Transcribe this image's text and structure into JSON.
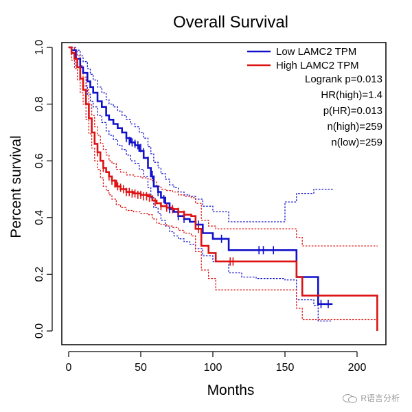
{
  "chart_data": {
    "type": "line",
    "title": "Overall Survival",
    "xlabel": "Months",
    "ylabel": "Percent survival",
    "xlim": [
      0,
      215
    ],
    "ylim": [
      0,
      1.0
    ],
    "x_ticks": [
      0,
      50,
      100,
      150,
      200
    ],
    "y_ticks": [
      0.0,
      0.2,
      0.4,
      0.6,
      0.8,
      1.0
    ],
    "x_tick_labels": [
      "0",
      "50",
      "100",
      "150",
      "200"
    ],
    "y_tick_labels": [
      "0.0",
      "0.2",
      "0.4",
      "0.6",
      "0.8",
      "1.0"
    ],
    "series": [
      {
        "name": "Low LAMC2 TPM",
        "color": "#1010cc",
        "x": [
          0,
          2,
          5,
          8,
          10,
          13,
          15,
          17,
          20,
          23,
          26,
          28,
          31,
          34,
          37,
          40,
          43,
          46,
          49,
          52,
          55,
          57,
          59,
          62,
          64,
          67,
          70,
          73,
          76,
          80,
          84,
          88,
          93,
          100,
          105,
          111,
          120,
          130,
          140,
          150,
          158,
          170,
          173,
          183
        ],
        "y": [
          1.0,
          0.99,
          0.96,
          0.93,
          0.91,
          0.88,
          0.86,
          0.84,
          0.81,
          0.79,
          0.76,
          0.745,
          0.73,
          0.715,
          0.7,
          0.68,
          0.665,
          0.655,
          0.635,
          0.61,
          0.575,
          0.545,
          0.51,
          0.49,
          0.47,
          0.45,
          0.43,
          0.42,
          0.405,
          0.395,
          0.385,
          0.375,
          0.345,
          0.325,
          0.325,
          0.285,
          0.285,
          0.285,
          0.285,
          0.285,
          0.19,
          0.19,
          0.095,
          0.095
        ],
        "upper": [
          1.0,
          1.0,
          0.99,
          0.97,
          0.95,
          0.925,
          0.905,
          0.885,
          0.86,
          0.84,
          0.815,
          0.8,
          0.79,
          0.775,
          0.76,
          0.745,
          0.73,
          0.72,
          0.7,
          0.68,
          0.65,
          0.625,
          0.595,
          0.575,
          0.555,
          0.535,
          0.515,
          0.505,
          0.49,
          0.48,
          0.475,
          0.465,
          0.44,
          0.42,
          0.42,
          0.385,
          0.385,
          0.385,
          0.385,
          0.455,
          0.485,
          0.5,
          0.5,
          0.5
        ],
        "lower": [
          1.0,
          0.975,
          0.93,
          0.89,
          0.865,
          0.835,
          0.81,
          0.79,
          0.76,
          0.735,
          0.705,
          0.69,
          0.675,
          0.655,
          0.64,
          0.62,
          0.6,
          0.59,
          0.57,
          0.545,
          0.505,
          0.47,
          0.435,
          0.415,
          0.39,
          0.37,
          0.35,
          0.335,
          0.325,
          0.315,
          0.305,
          0.29,
          0.265,
          0.245,
          0.245,
          0.205,
          0.19,
          0.185,
          0.185,
          0.18,
          0.11,
          0.09,
          0.035,
          0.035
        ],
        "censored_x": [
          40,
          42,
          44,
          46,
          48,
          50,
          52,
          55,
          58,
          62,
          66,
          70,
          76,
          80,
          90,
          106,
          132,
          135,
          142,
          175,
          180
        ],
        "censored_y": [
          0.68,
          0.67,
          0.665,
          0.66,
          0.655,
          0.645,
          0.63,
          0.6,
          0.55,
          0.49,
          0.465,
          0.43,
          0.405,
          0.395,
          0.375,
          0.325,
          0.285,
          0.285,
          0.285,
          0.095,
          0.095
        ]
      },
      {
        "name": "High LAMC2 TPM",
        "color": "#dd1111",
        "x": [
          0,
          2,
          4,
          6,
          8,
          10,
          12,
          14,
          16,
          18,
          20,
          22,
          24,
          26,
          28,
          30,
          33,
          36,
          40,
          45,
          50,
          55,
          58,
          61,
          64,
          68,
          72,
          76,
          80,
          85,
          88,
          92,
          97,
          102,
          110,
          120,
          130,
          140,
          150,
          158,
          162,
          175,
          190,
          200,
          214
        ],
        "y": [
          1.0,
          0.98,
          0.96,
          0.93,
          0.89,
          0.85,
          0.8,
          0.75,
          0.7,
          0.66,
          0.63,
          0.6,
          0.575,
          0.56,
          0.545,
          0.53,
          0.51,
          0.5,
          0.49,
          0.485,
          0.48,
          0.475,
          0.46,
          0.45,
          0.44,
          0.435,
          0.43,
          0.42,
          0.41,
          0.405,
          0.36,
          0.3,
          0.275,
          0.245,
          0.245,
          0.245,
          0.245,
          0.245,
          0.245,
          0.19,
          0.125,
          0.125,
          0.125,
          0.125,
          0.0
        ],
        "upper": [
          1.0,
          1.0,
          0.99,
          0.97,
          0.935,
          0.895,
          0.85,
          0.8,
          0.76,
          0.72,
          0.69,
          0.66,
          0.64,
          0.62,
          0.6,
          0.59,
          0.57,
          0.56,
          0.55,
          0.545,
          0.54,
          0.535,
          0.525,
          0.51,
          0.5,
          0.495,
          0.49,
          0.48,
          0.475,
          0.47,
          0.45,
          0.39,
          0.37,
          0.36,
          0.36,
          0.36,
          0.36,
          0.36,
          0.36,
          0.33,
          0.3,
          0.3,
          0.3,
          0.3,
          0.3
        ],
        "lower": [
          1.0,
          0.955,
          0.925,
          0.885,
          0.84,
          0.8,
          0.745,
          0.695,
          0.645,
          0.6,
          0.57,
          0.54,
          0.51,
          0.495,
          0.48,
          0.465,
          0.445,
          0.435,
          0.425,
          0.42,
          0.415,
          0.41,
          0.395,
          0.38,
          0.375,
          0.37,
          0.365,
          0.355,
          0.345,
          0.335,
          0.28,
          0.215,
          0.185,
          0.145,
          0.145,
          0.145,
          0.145,
          0.145,
          0.145,
          0.08,
          0.04,
          0.04,
          0.04,
          0.04,
          0.04
        ],
        "censored_x": [
          20,
          24,
          28,
          30,
          32,
          34,
          36,
          38,
          40,
          42,
          44,
          46,
          48,
          50,
          52,
          54,
          56,
          60,
          64,
          68,
          72,
          76,
          80,
          90,
          112,
          114
        ],
        "censored_y": [
          0.63,
          0.575,
          0.545,
          0.53,
          0.52,
          0.51,
          0.505,
          0.5,
          0.49,
          0.49,
          0.485,
          0.485,
          0.48,
          0.48,
          0.475,
          0.475,
          0.47,
          0.455,
          0.44,
          0.435,
          0.43,
          0.42,
          0.41,
          0.36,
          0.245,
          0.245
        ]
      }
    ],
    "legend": {
      "placement": "top-right",
      "entries": [
        "Low LAMC2 TPM",
        "High LAMC2 TPM"
      ],
      "stats": [
        "Logrank p=0.013",
        "HR(high)=1.4",
        "p(HR)=0.013",
        "n(high)=259",
        "n(low)=259"
      ]
    }
  },
  "watermark": {
    "text": "R语言分析",
    "icon": "wechat-icon"
  }
}
